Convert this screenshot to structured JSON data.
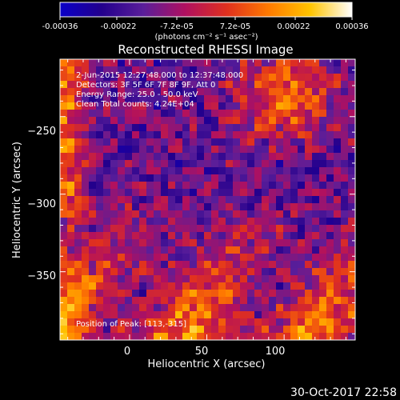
{
  "colorbar": {
    "ticks": [
      "-0.00036",
      "-0.00022",
      "-7.2e-05",
      "7.2e-05",
      "0.00022",
      "0.00036"
    ],
    "tick_values": [
      -0.00036,
      -0.00022,
      -7.2e-05,
      7.2e-05,
      0.00022,
      0.00036
    ],
    "range": [
      -0.00036,
      0.00036
    ],
    "unit_label": "(photons cm⁻² s⁻¹ asec⁻²)",
    "stops": [
      "#0a00c8",
      "#23008c",
      "#5a1e9a",
      "#b01060",
      "#e0301e",
      "#ff7a00",
      "#ffc400",
      "#ffffff"
    ]
  },
  "overlay": {
    "time_line": "2-Jun-2015 12:27:48.000 to 12:37:48.000",
    "detectors_line": "Detectors: 3F 5F 6F 7F 8F 9F, Att 0",
    "energy_line": "Energy Range: 25.0 - 50.0 keV",
    "clean_line": "Clean    Total counts: 4.24E+04",
    "peak_line": "Position of Peak: [113,-315]"
  },
  "footer": {
    "timestamp": "30-Oct-2017 22:58"
  },
  "chart_data": {
    "type": "heatmap",
    "title": "Reconstructed RHESSI Image",
    "xlabel": "Heliocentric X (arcsec)",
    "ylabel": "Heliocentric Y (arcsec)",
    "xlim": [
      -45,
      146
    ],
    "ylim": [
      -394,
      -213
    ],
    "xticks": [
      0,
      50,
      100
    ],
    "yticks": [
      -250,
      -300,
      -350
    ],
    "xtick_labels": [
      "0",
      "50",
      "100"
    ],
    "ytick_labels": [
      "−250",
      "−300",
      "−350"
    ],
    "colorscale_range": [
      -0.00036,
      0.00036
    ],
    "peak_position": [
      113,
      -315
    ]
  }
}
